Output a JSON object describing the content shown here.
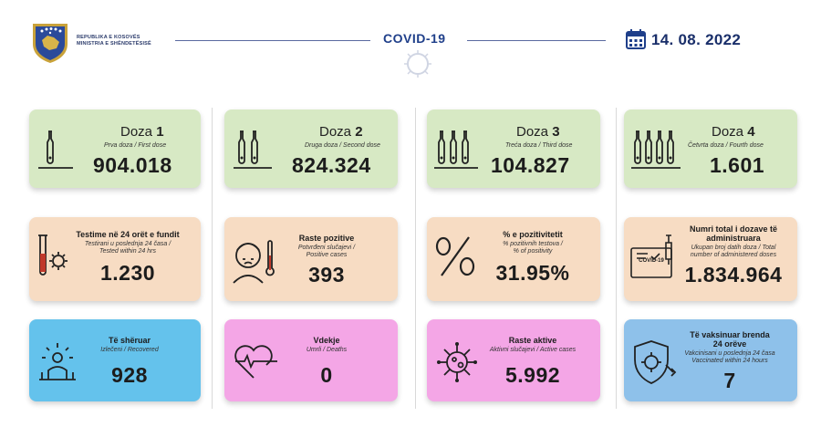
{
  "header": {
    "ministry_line1": "REPUBLIKA E KOSOVËS",
    "ministry_line2": "MINISTRIA E SHËNDETËSISË",
    "title": "COVID-19",
    "date": "14. 08. 2022",
    "icons": [
      "kosovo-emblem-icon",
      "coronavirus-icon",
      "calendar-icon"
    ]
  },
  "doses": [
    {
      "label": "Doza",
      "num": "1",
      "sub": "Prva doza / First dose",
      "value": "904.018"
    },
    {
      "label": "Doza",
      "num": "2",
      "sub": "Druga doza / Second dose",
      "value": "824.324"
    },
    {
      "label": "Doza",
      "num": "3",
      "sub": "Treća doza / Third dose",
      "value": "104.827"
    },
    {
      "label": "Doza",
      "num": "4",
      "sub": "Četvrta doza / Fourth dose",
      "value": "1.601"
    }
  ],
  "row2": {
    "testing": {
      "title": "Testime në 24 orët e fundit",
      "sub1": "Testirani u poslednja 24 časa /",
      "sub2": "Tested within 24 hrs",
      "value": "1.230"
    },
    "positive": {
      "title": "Raste pozitive",
      "sub1": "Potvrđeni slučajevi /",
      "sub2": "Positive cases",
      "value": "393"
    },
    "positivity": {
      "title": "% e pozitivitetit",
      "sub1": "% pozitivnih testova /",
      "sub2": "% of positivity",
      "value": "31.95%"
    },
    "total_doses": {
      "title1": "Numri total i dozave të",
      "title2": "administruara",
      "sub1": "Ukupan broj datih doza / Total",
      "sub2": "number of administered doses",
      "value": "1.834.964",
      "card_text": "COVID-19"
    }
  },
  "row3": {
    "recovered": {
      "title": "Të shëruar",
      "sub": "Izlečeni / Recovered",
      "value": "928"
    },
    "deaths": {
      "title": "Vdekje",
      "sub": "Umrli / Deaths",
      "value": "0"
    },
    "active": {
      "title": "Raste aktive",
      "sub": "Aktivni slučajevi / Active cases",
      "value": "5.992"
    },
    "vaccinated24": {
      "title1": "Të vaksinuar brenda",
      "title2": "24 orëve",
      "sub1": "Vakcinisani u poslednja 24 časa",
      "sub2": "Vaccinated within 24 hours",
      "value": "7"
    }
  },
  "colors": {
    "green": "#d7e9c4",
    "peach": "#f7dcc3",
    "blue": "#64c2ec",
    "pink": "#f4a6e6",
    "light_blue": "#8ec1ea",
    "navy": "#1a2f6a"
  }
}
